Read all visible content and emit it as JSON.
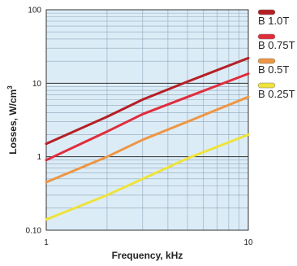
{
  "chart_data": {
    "type": "line",
    "xlabel": "Frequency, kHz",
    "ylabel": "Losses, W/cm",
    "ylabel_sup": "3",
    "x_scale": "log",
    "y_scale": "log",
    "xlim": [
      1,
      10
    ],
    "ylim": [
      0.1,
      100
    ],
    "x_ticks": [
      {
        "value": 1,
        "label": "1"
      },
      {
        "value": 10,
        "label": "10"
      }
    ],
    "y_ticks": [
      {
        "value": 0.1,
        "label": "0.10"
      },
      {
        "value": 1,
        "label": "1"
      },
      {
        "value": 10,
        "label": "10"
      },
      {
        "value": 100,
        "label": "100"
      }
    ],
    "grid": true,
    "plot_background": "#dcecf7",
    "legend_placement": "right",
    "series": [
      {
        "name": "B 1.0T",
        "color": "#b51f24",
        "x": [
          1,
          2,
          3,
          5,
          10
        ],
        "y": [
          1.5,
          3.5,
          6,
          10.5,
          22
        ]
      },
      {
        "name": "B 0.75T",
        "color": "#e02d3c",
        "x": [
          1,
          2,
          3,
          5,
          10
        ],
        "y": [
          0.9,
          2.2,
          3.8,
          6.5,
          13.5
        ]
      },
      {
        "name": "B 0.5T",
        "color": "#ee9644",
        "x": [
          1,
          2,
          3,
          5,
          10
        ],
        "y": [
          0.45,
          1.0,
          1.7,
          3.0,
          6.5
        ]
      },
      {
        "name": "B 0.25T",
        "color": "#eee33c",
        "x": [
          1,
          2,
          3,
          5,
          10
        ],
        "y": [
          0.14,
          0.3,
          0.5,
          0.95,
          2.0
        ]
      }
    ]
  }
}
